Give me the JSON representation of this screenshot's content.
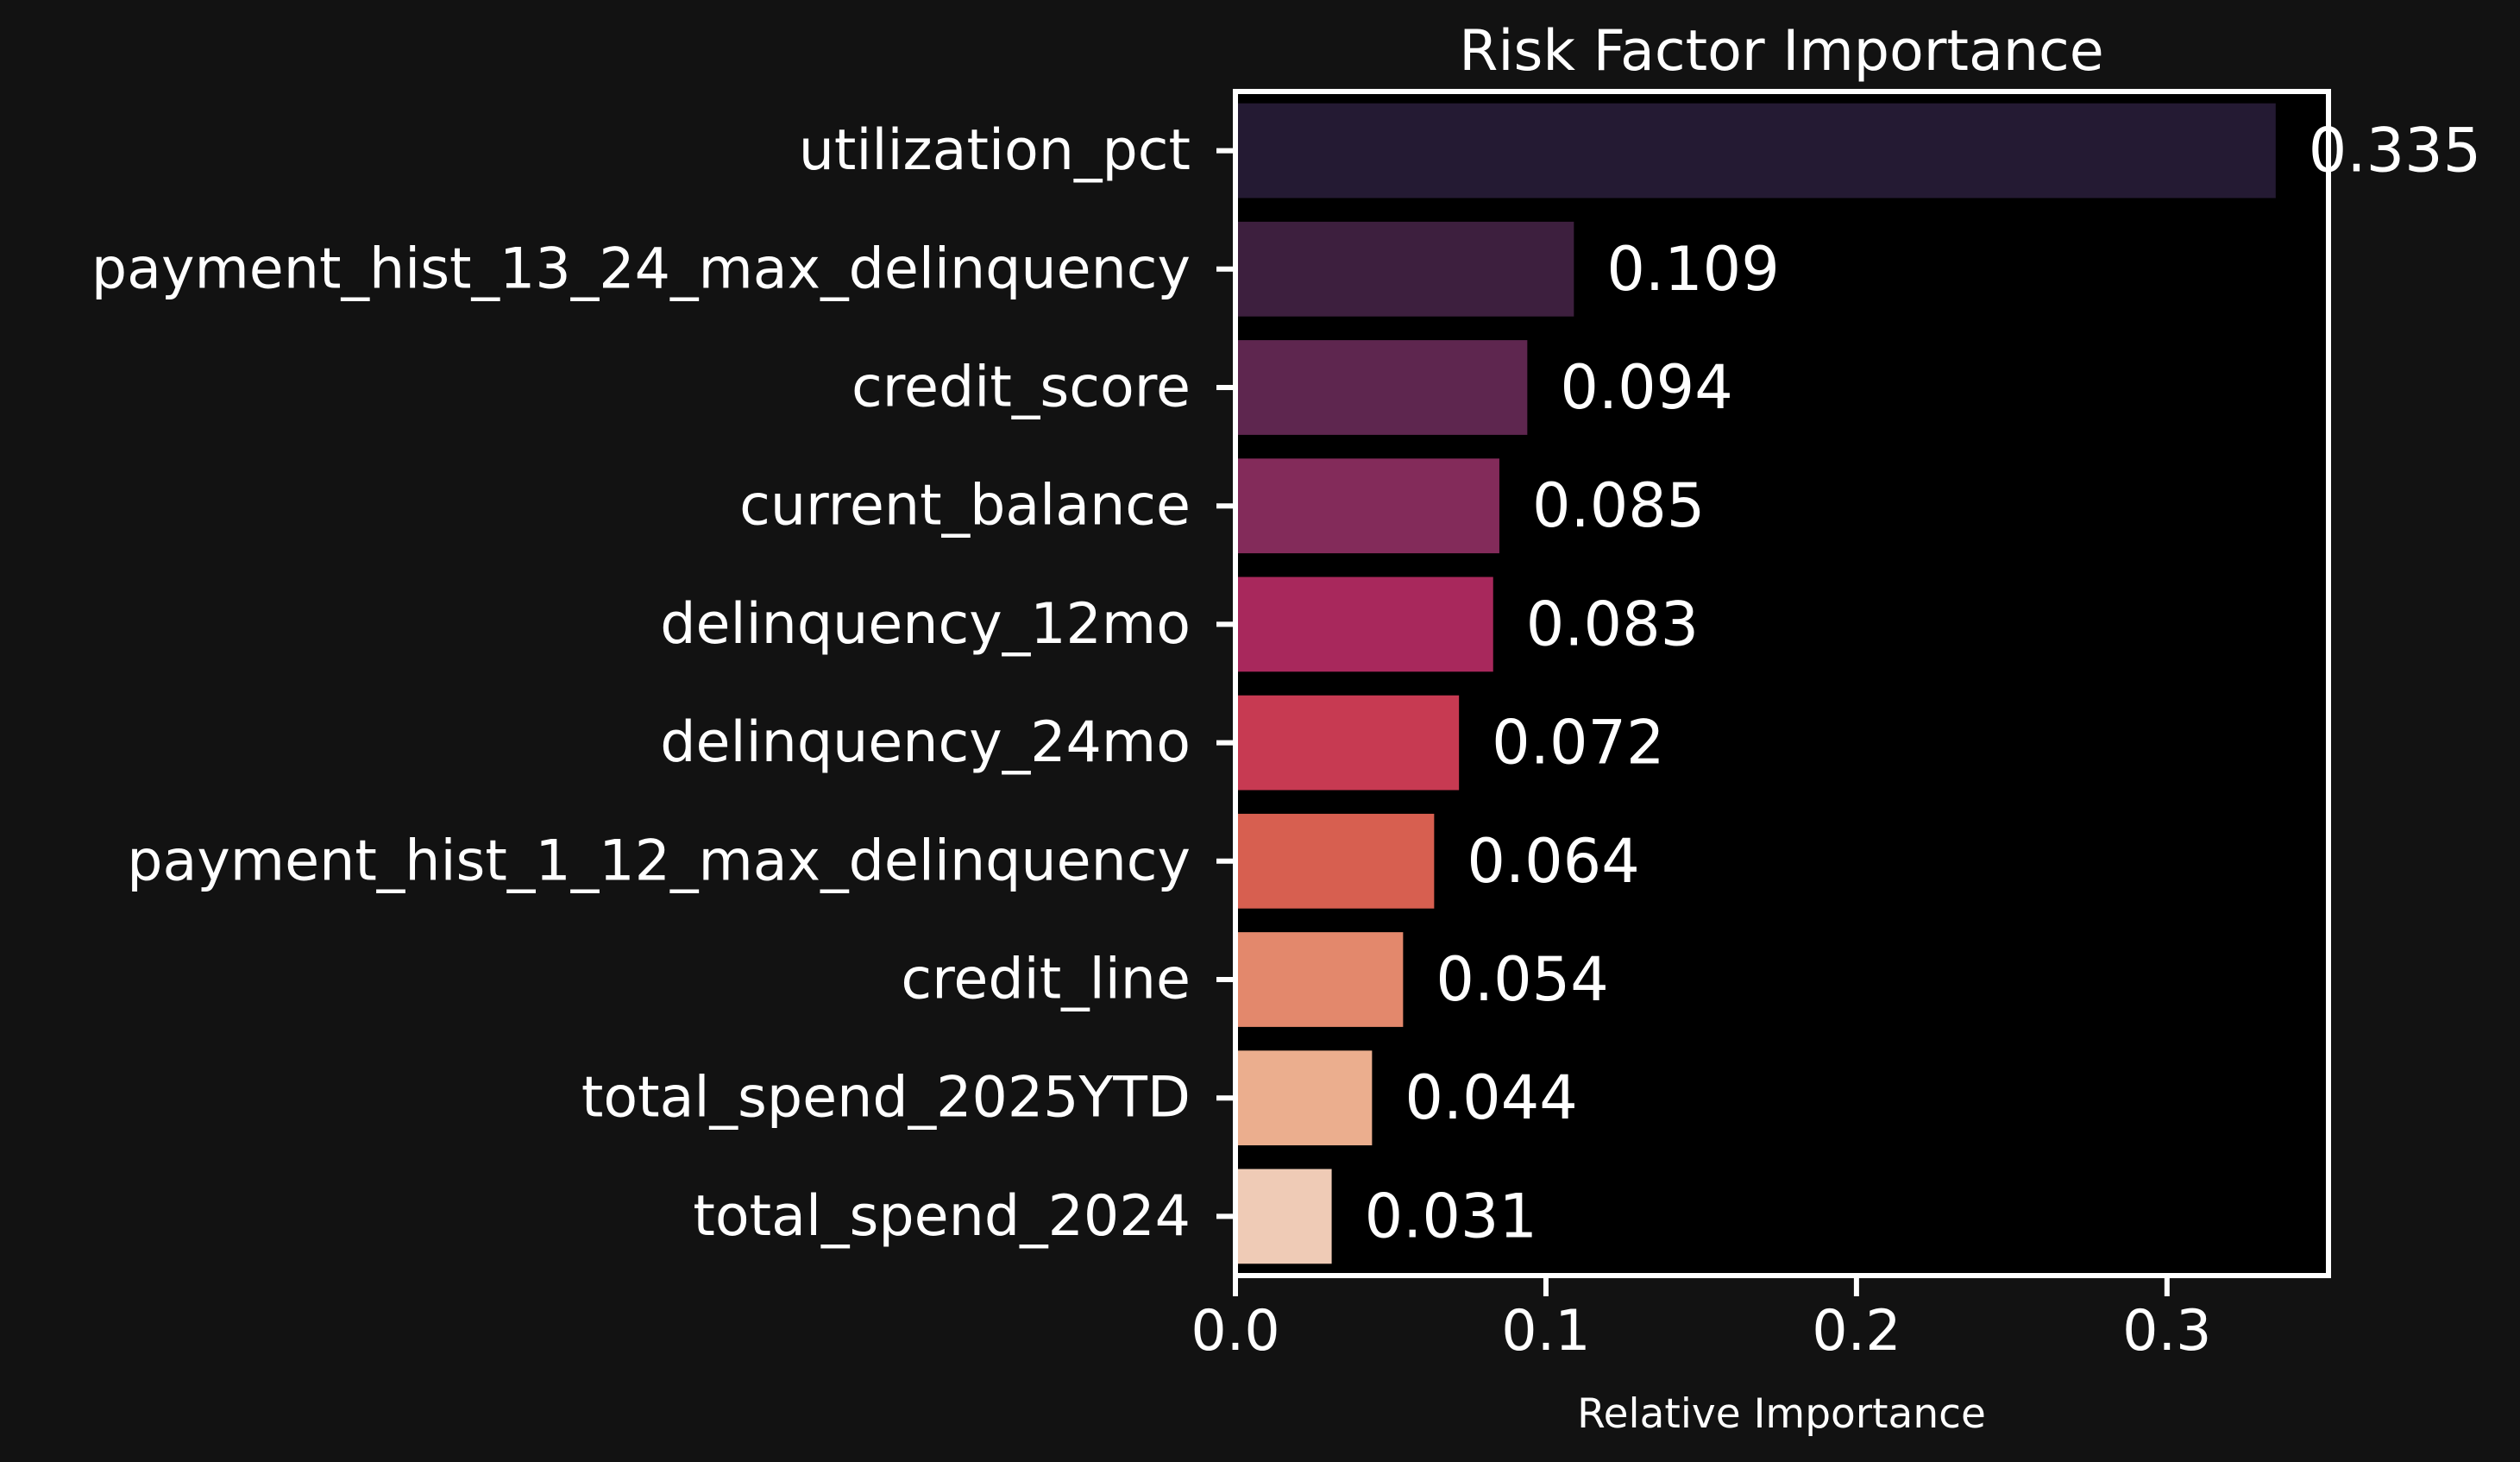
{
  "chart_data": {
    "type": "bar",
    "orientation": "horizontal",
    "title": "Risk Factor Importance",
    "xlabel": "Relative Importance",
    "ylabel": "",
    "categories": [
      "utilization_pct",
      "payment_hist_13_24_max_delinquency",
      "credit_score",
      "current_balance",
      "delinquency_12mo",
      "delinquency_24mo",
      "payment_hist_1_12_max_delinquency",
      "credit_line",
      "total_spend_2025YTD",
      "total_spend_2024"
    ],
    "values": [
      0.335,
      0.109,
      0.094,
      0.085,
      0.083,
      0.072,
      0.064,
      0.054,
      0.044,
      0.031
    ],
    "value_labels": [
      "0.335",
      "0.109",
      "0.094",
      "0.085",
      "0.083",
      "0.072",
      "0.064",
      "0.054",
      "0.044",
      "0.031"
    ],
    "bar_colors": [
      "#241A33",
      "#3D1F3E",
      "#5E264F",
      "#832B5A",
      "#A8285C",
      "#C73A52",
      "#D75F50",
      "#E3886C",
      "#EBAE8E",
      "#EFCBB6"
    ],
    "xlim": [
      0,
      0.352
    ],
    "xticks": [
      0.0,
      0.1,
      0.2,
      0.3
    ],
    "xtick_labels": [
      "0.0",
      "0.1",
      "0.2",
      "0.3"
    ],
    "grid": false,
    "legend": "none",
    "colors": {
      "page_background": "#121212",
      "plot_background": "#000000",
      "axis": "#ffffff",
      "text": "#ffffff"
    }
  }
}
